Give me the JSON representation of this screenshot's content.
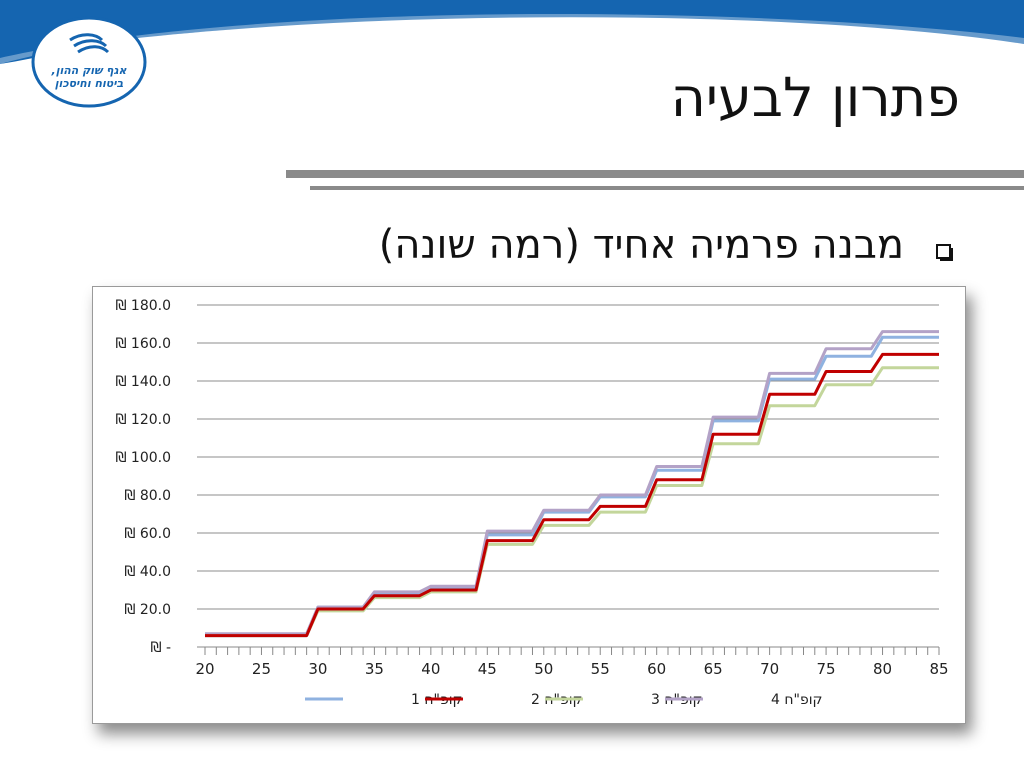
{
  "slide": {
    "title": "פתרון לבעיה",
    "bullet": "מבנה פרמיה אחיד (רמה שונה)",
    "logo": {
      "line1": "אגף שוק ההון,",
      "line2": "ביטוח וחיסכון"
    }
  },
  "colors": {
    "banner": "#1565b0",
    "series": [
      "#8fb2e0",
      "#c00000",
      "#c3d69b",
      "#b3a2c7"
    ]
  },
  "chart_data": {
    "type": "line",
    "title": "",
    "xlabel": "",
    "ylabel": "",
    "x_ticks": [
      20,
      25,
      30,
      35,
      40,
      45,
      50,
      55,
      60,
      65,
      70,
      75,
      80,
      85
    ],
    "xlim": [
      20,
      85
    ],
    "ylim": [
      0,
      180
    ],
    "y_ticks": [
      0,
      20,
      40,
      60,
      80,
      100,
      120,
      140,
      160,
      180
    ],
    "y_tick_labels": [
      "₪ -",
      "₪ 20.0",
      "₪ 40.0",
      "₪ 60.0",
      "₪ 80.0",
      "₪ 100.0",
      "₪ 120.0",
      "₪ 140.0",
      "₪ 160.0",
      "₪ 180.0"
    ],
    "grid": "horizontal",
    "legend_position": "bottom",
    "series": [
      {
        "name": "קופ\"ח 1",
        "x": [
          20,
          29,
          30,
          34,
          35,
          39,
          40,
          44,
          45,
          49,
          50,
          54,
          55,
          59,
          60,
          64,
          65,
          69,
          70,
          74,
          75,
          79,
          80,
          85
        ],
        "values": [
          6,
          6,
          21,
          21,
          28,
          28,
          31,
          31,
          59,
          59,
          71,
          71,
          79,
          79,
          93,
          93,
          119,
          119,
          141,
          141,
          153,
          153,
          163,
          163
        ]
      },
      {
        "name": "קופ\"ח 2",
        "x": [
          20,
          29,
          30,
          34,
          35,
          39,
          40,
          44,
          45,
          49,
          50,
          54,
          55,
          59,
          60,
          64,
          65,
          69,
          70,
          74,
          75,
          79,
          80,
          85
        ],
        "values": [
          6,
          6,
          20,
          20,
          27,
          27,
          30,
          30,
          56,
          56,
          67,
          67,
          74,
          74,
          88,
          88,
          112,
          112,
          133,
          133,
          145,
          145,
          154,
          154
        ]
      },
      {
        "name": "קופ\"ח 3",
        "x": [
          20,
          29,
          30,
          34,
          35,
          39,
          40,
          44,
          45,
          49,
          50,
          54,
          55,
          59,
          60,
          64,
          65,
          69,
          70,
          74,
          75,
          79,
          80,
          85
        ],
        "values": [
          6,
          6,
          19,
          19,
          26,
          26,
          29,
          29,
          54,
          54,
          64,
          64,
          71,
          71,
          85,
          85,
          107,
          107,
          127,
          127,
          138,
          138,
          147,
          147
        ]
      },
      {
        "name": "קופ\"ח 4",
        "x": [
          20,
          29,
          30,
          34,
          35,
          39,
          40,
          44,
          45,
          49,
          50,
          54,
          55,
          59,
          60,
          64,
          65,
          69,
          70,
          74,
          75,
          79,
          80,
          85
        ],
        "values": [
          7,
          7,
          21,
          21,
          29,
          29,
          32,
          32,
          61,
          61,
          72,
          72,
          80,
          80,
          95,
          95,
          121,
          121,
          144,
          144,
          157,
          157,
          166,
          166
        ]
      }
    ]
  }
}
